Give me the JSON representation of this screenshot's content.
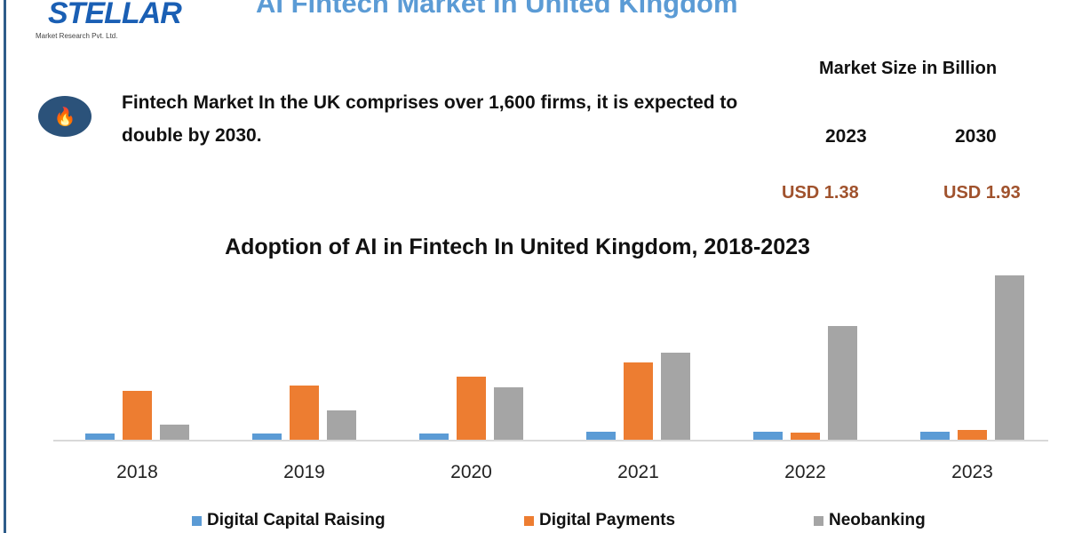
{
  "logo": {
    "name": "STELLAR",
    "subtitle": "Market Research Pvt. Ltd."
  },
  "title": "AI Fintech Market in United Kingdom",
  "note": {
    "icon": "fire-icon",
    "text": "Fintech Market In the UK comprises over 1,600 firms, it is expected to double by 2030."
  },
  "market_size": {
    "title": "Market Size in Billion",
    "years": [
      "2023",
      "2030"
    ],
    "values": [
      "USD 1.38",
      "USD 1.93"
    ],
    "value_color": "#a0522d"
  },
  "chart_data": {
    "type": "bar",
    "title": "Adoption of AI in Fintech In United Kingdom, 2018-2023",
    "categories": [
      "2018",
      "2019",
      "2020",
      "2021",
      "2022",
      "2023"
    ],
    "series": [
      {
        "name": "Digital Capital Raising",
        "color": "#5b9bd5",
        "values": [
          7,
          7,
          7,
          9,
          9,
          9
        ]
      },
      {
        "name": "Digital Payments",
        "color": "#ed7d31",
        "values": [
          55,
          61,
          71,
          87,
          8,
          11
        ]
      },
      {
        "name": "Neobanking",
        "color": "#a5a5a5",
        "values": [
          17,
          33,
          59,
          98,
          128,
          185
        ]
      }
    ],
    "legend": "bottom",
    "grid": false,
    "y_axis_shown": false
  }
}
